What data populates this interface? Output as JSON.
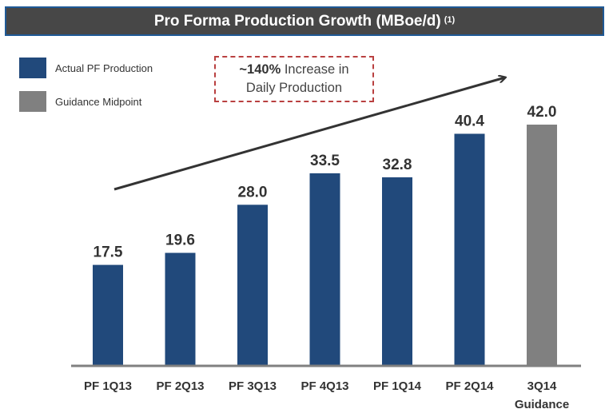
{
  "chart_data": {
    "type": "bar",
    "title": "Pro Forma Production Growth (MBoe/d)",
    "title_footnote": "(1)",
    "xlabel": "",
    "ylabel": "",
    "ylim": [
      0,
      42
    ],
    "grid": false,
    "categories": [
      "PF 1Q13",
      "PF 2Q13",
      "PF 3Q13",
      "PF 4Q13",
      "PF 1Q14",
      "PF 2Q14",
      "3Q14 Guidance"
    ],
    "category_lines": [
      [
        "PF 1Q13"
      ],
      [
        "PF 2Q13"
      ],
      [
        "PF 3Q13"
      ],
      [
        "PF 4Q13"
      ],
      [
        "PF 1Q14"
      ],
      [
        "PF 2Q14"
      ],
      [
        "3Q14",
        "Guidance"
      ]
    ],
    "values": [
      17.5,
      19.6,
      28.0,
      33.5,
      32.8,
      40.4,
      42.0
    ],
    "value_labels": [
      "17.5",
      "19.6",
      "28.0",
      "33.5",
      "32.8",
      "40.4",
      "42.0"
    ],
    "series_of_bar": [
      "actual",
      "actual",
      "actual",
      "actual",
      "actual",
      "actual",
      "guidance"
    ],
    "legend": {
      "placement": "top-left",
      "entries": [
        {
          "key": "actual",
          "label": "Actual PF Production",
          "color": "#21497b"
        },
        {
          "key": "guidance",
          "label": "Guidance Midpoint",
          "color": "#808080"
        }
      ]
    },
    "annotations": [
      {
        "type": "callout",
        "bold_text": "~140%",
        "text_line1": " Increase in",
        "text_line2": "Daily Production",
        "border_color": "#b94040"
      },
      {
        "type": "trend-arrow",
        "direction": "up-right"
      }
    ]
  },
  "colors": {
    "title_bg": "#474747",
    "title_border": "#1f5a96",
    "axis": "#808080",
    "arrow": "#333333"
  }
}
